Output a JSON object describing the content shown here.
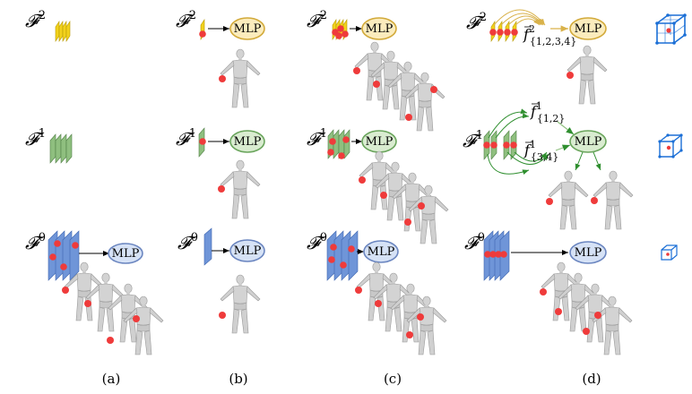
{
  "panels": [
    {
      "label": "(a)"
    },
    {
      "label": "(b)"
    },
    {
      "label": "(c)"
    },
    {
      "label": "(d)"
    }
  ],
  "levels": {
    "f2": {
      "base": "𝓕",
      "sup": "2"
    },
    "f1": {
      "base": "𝓕",
      "sup": "1"
    },
    "f0": {
      "base": "𝓕",
      "sup": "0"
    }
  },
  "mlp_label": "MLP",
  "aggregated": {
    "f2_agg": {
      "base": "f",
      "sup": "2",
      "sub": "{1,2,3,4}"
    },
    "f1_agg_a": {
      "base": "f",
      "sup": "1",
      "sub": "{1,2}"
    },
    "f1_agg_b": {
      "base": "f",
      "sup": "1",
      "sub": "{3,4}"
    }
  },
  "colors": {
    "f2_plane": "#f2d21c",
    "f2_plane_edge": "#b89a00",
    "f1_plane": "#8fbf7f",
    "f1_plane_edge": "#4f7f45",
    "f0_plane": "#6f95d8",
    "f0_plane_edge": "#3e66b0",
    "query_dot": "#ef3b3b",
    "mlp_f2_fill": "#fbecbd",
    "mlp_f2_stroke": "#d2aa3a",
    "mlp_f1_fill": "#d9ecd0",
    "mlp_f1_stroke": "#6aa55c",
    "mlp_f0_fill": "#d6e2f6",
    "mlp_f0_stroke": "#6b86c0",
    "agg_arrow_f2": "#d9b24a",
    "agg_arrow_f1": "#2f8f2f",
    "cube_edge": "#1b6fd6",
    "body_fill": "#d3d3d3",
    "body_stroke": "#9a9a9a"
  }
}
